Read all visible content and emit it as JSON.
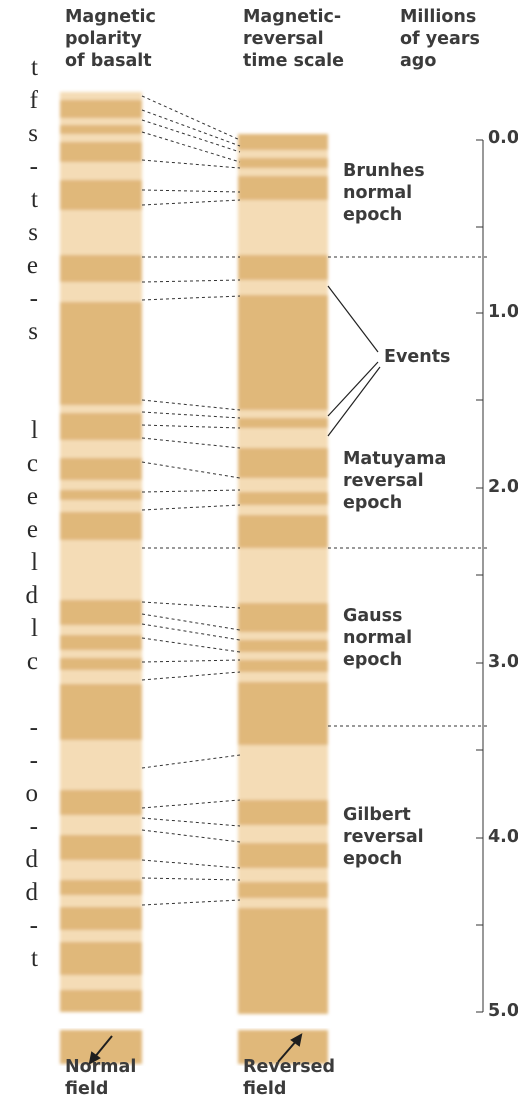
{
  "headers": {
    "col1": "Magnetic\npolarity\nof basalt",
    "col2": "Magnetic-\nreversal\ntime scale",
    "col3": "Millions\nof years\nago"
  },
  "scale": {
    "ticks": [
      "0.0",
      "1.0",
      "2.0",
      "3.0",
      "4.0",
      "5.0"
    ]
  },
  "labels": {
    "brunhes": "Brunhes\nnormal\nepoch",
    "events": "Events",
    "matuyama": "Matuyama\nreversal\nepoch",
    "gauss": "Gauss\nnormal\nepoch",
    "gilbert": "Gilbert\nreversal\nepoch"
  },
  "legend": {
    "normal": "Normal\nfield",
    "reversed": "Reversed\nfield"
  },
  "cut_text": [
    "t",
    "f",
    "s",
    "-",
    "t",
    "s",
    "e",
    "-",
    "s",
    "",
    "",
    "l",
    "c",
    "e",
    "e",
    "l",
    "d",
    "l",
    "c",
    "",
    "-",
    "-",
    "o",
    "-",
    "d",
    "d",
    "-",
    "t"
  ],
  "colors": {
    "normal_band": "#e0b87a",
    "reversed_band": "#f4dcb6",
    "text": "#3b3b3b",
    "line": "#333333"
  }
}
